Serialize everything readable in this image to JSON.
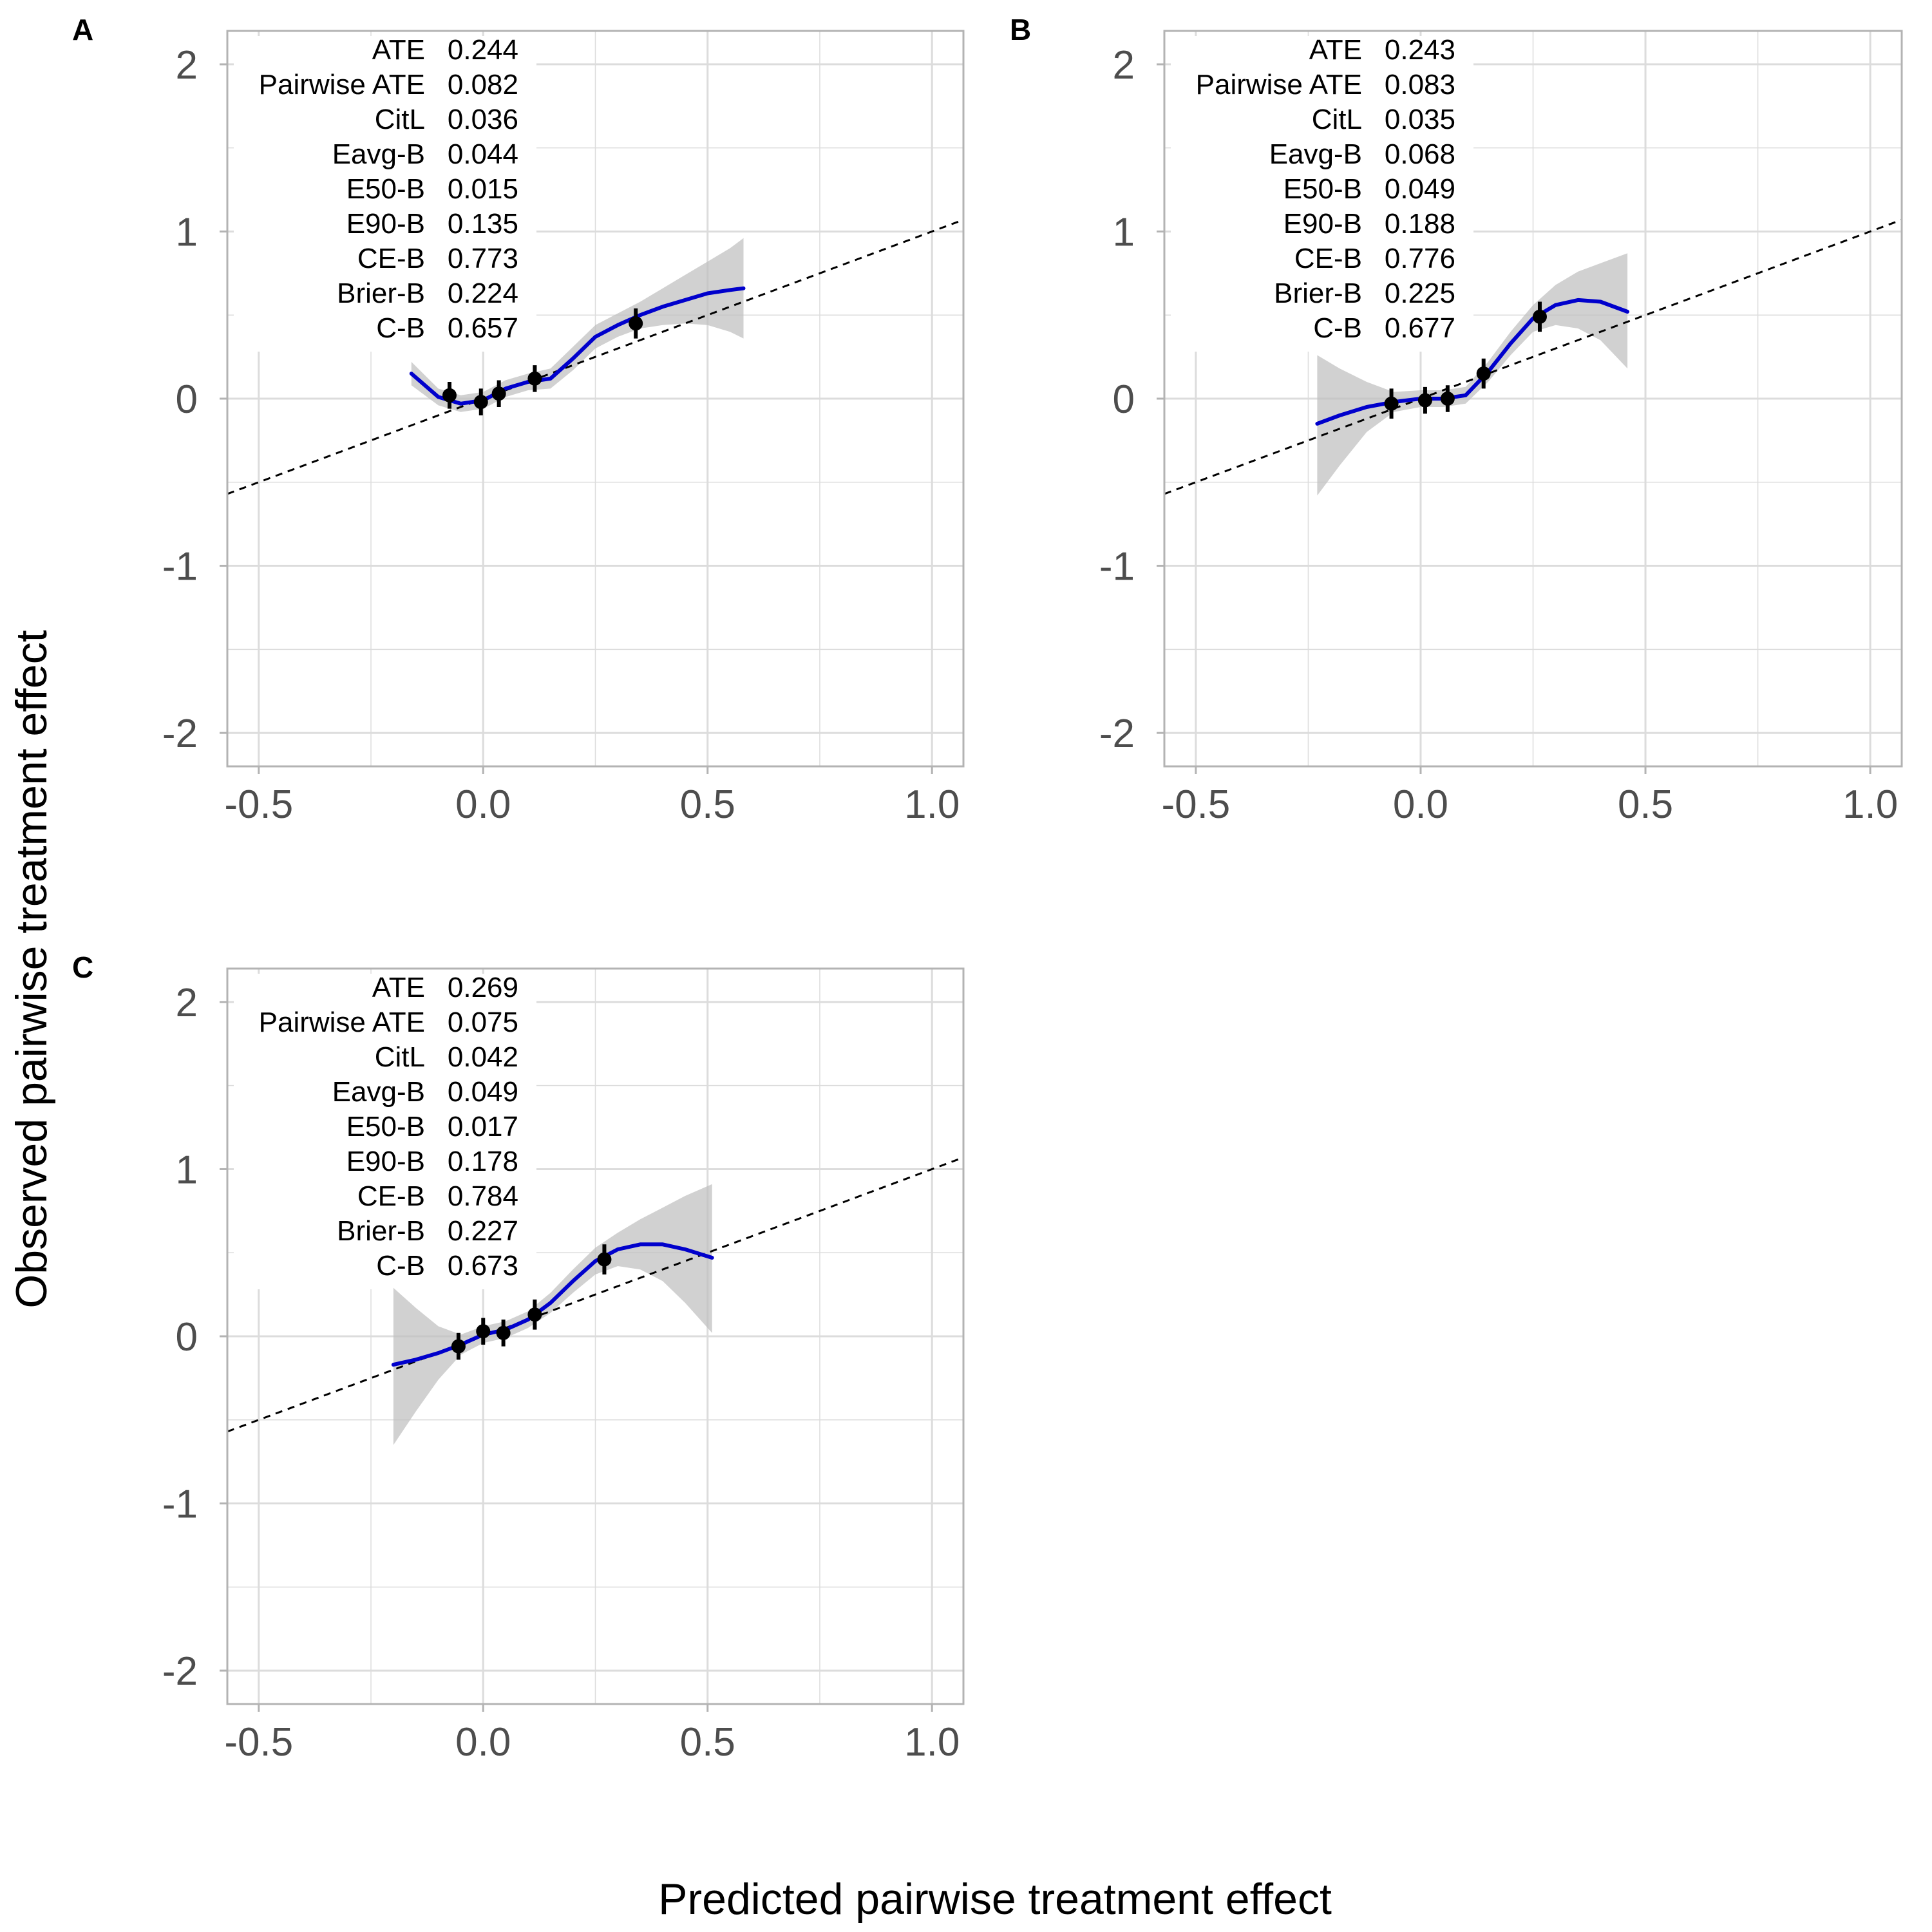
{
  "figure": {
    "xlabel": "Predicted pairwise treatment effect",
    "ylabel": "Observed pairwise treatment effect"
  },
  "colors": {
    "smooth": "#0000CC",
    "band": "#BEBEBE",
    "points": "#000000",
    "frame": "#B3B3B3",
    "grid": "#DCDCDC",
    "tick_text": "#4D4D4D"
  },
  "chart_data": [
    {
      "panel": "A",
      "type": "scatter",
      "xlim": [
        -0.57,
        1.07
      ],
      "ylim": [
        -2.2,
        2.2
      ],
      "x_ticks": [
        "-0.5",
        "0.0",
        "0.5",
        "1.0"
      ],
      "y_ticks": [
        "-2",
        "-1",
        "0",
        "1",
        "2"
      ],
      "reference_line": {
        "intercept": 0,
        "slope": 1,
        "style": "dashed"
      },
      "stats": [
        {
          "label": "ATE",
          "value": "0.244"
        },
        {
          "label": "Pairwise ATE",
          "value": "0.082"
        },
        {
          "label": "CitL",
          "value": "0.036"
        },
        {
          "label": "Eavg-B",
          "value": "0.044"
        },
        {
          "label": "E50-B",
          "value": "0.015"
        },
        {
          "label": "E90-B",
          "value": "0.135"
        },
        {
          "label": "CE-B",
          "value": "0.773"
        },
        {
          "label": "Brier-B",
          "value": "0.224"
        },
        {
          "label": "C-B",
          "value": "0.657"
        }
      ],
      "points": [
        {
          "x": -0.075,
          "y": 0.02,
          "lo": -0.06,
          "hi": 0.1
        },
        {
          "x": -0.005,
          "y": -0.02,
          "lo": -0.1,
          "hi": 0.06
        },
        {
          "x": 0.035,
          "y": 0.03,
          "lo": -0.05,
          "hi": 0.11
        },
        {
          "x": 0.115,
          "y": 0.12,
          "lo": 0.04,
          "hi": 0.2
        },
        {
          "x": 0.34,
          "y": 0.45,
          "lo": 0.36,
          "hi": 0.54
        }
      ],
      "smooth": [
        {
          "x": -0.16,
          "y": 0.15,
          "lo": 0.08,
          "hi": 0.22
        },
        {
          "x": -0.1,
          "y": 0.01,
          "lo": -0.04,
          "hi": 0.06
        },
        {
          "x": -0.05,
          "y": -0.03,
          "lo": -0.08,
          "hi": 0.02
        },
        {
          "x": 0.0,
          "y": -0.01,
          "lo": -0.06,
          "hi": 0.04
        },
        {
          "x": 0.05,
          "y": 0.06,
          "lo": 0.01,
          "hi": 0.11
        },
        {
          "x": 0.1,
          "y": 0.1,
          "lo": 0.05,
          "hi": 0.15
        },
        {
          "x": 0.15,
          "y": 0.12,
          "lo": 0.06,
          "hi": 0.18
        },
        {
          "x": 0.2,
          "y": 0.24,
          "lo": 0.17,
          "hi": 0.31
        },
        {
          "x": 0.25,
          "y": 0.37,
          "lo": 0.3,
          "hi": 0.44
        },
        {
          "x": 0.3,
          "y": 0.44,
          "lo": 0.37,
          "hi": 0.51
        },
        {
          "x": 0.35,
          "y": 0.5,
          "lo": 0.42,
          "hi": 0.58
        },
        {
          "x": 0.4,
          "y": 0.55,
          "lo": 0.44,
          "hi": 0.66
        },
        {
          "x": 0.45,
          "y": 0.59,
          "lo": 0.45,
          "hi": 0.74
        },
        {
          "x": 0.5,
          "y": 0.63,
          "lo": 0.44,
          "hi": 0.82
        },
        {
          "x": 0.55,
          "y": 0.65,
          "lo": 0.4,
          "hi": 0.9
        },
        {
          "x": 0.58,
          "y": 0.66,
          "lo": 0.36,
          "hi": 0.96
        }
      ]
    },
    {
      "panel": "B",
      "type": "scatter",
      "xlim": [
        -0.57,
        1.07
      ],
      "ylim": [
        -2.2,
        2.2
      ],
      "x_ticks": [
        "-0.5",
        "0.0",
        "0.5",
        "1.0"
      ],
      "y_ticks": [
        "-2",
        "-1",
        "0",
        "1",
        "2"
      ],
      "reference_line": {
        "intercept": 0,
        "slope": 1,
        "style": "dashed"
      },
      "stats": [
        {
          "label": "ATE",
          "value": "0.243"
        },
        {
          "label": "Pairwise ATE",
          "value": "0.083"
        },
        {
          "label": "CitL",
          "value": "0.035"
        },
        {
          "label": "Eavg-B",
          "value": "0.068"
        },
        {
          "label": "E50-B",
          "value": "0.049"
        },
        {
          "label": "E90-B",
          "value": "0.188"
        },
        {
          "label": "CE-B",
          "value": "0.776"
        },
        {
          "label": "Brier-B",
          "value": "0.225"
        },
        {
          "label": "C-B",
          "value": "0.677"
        }
      ],
      "points": [
        {
          "x": -0.065,
          "y": -0.03,
          "lo": -0.12,
          "hi": 0.06
        },
        {
          "x": 0.01,
          "y": -0.01,
          "lo": -0.09,
          "hi": 0.07
        },
        {
          "x": 0.06,
          "y": 0.0,
          "lo": -0.08,
          "hi": 0.08
        },
        {
          "x": 0.14,
          "y": 0.15,
          "lo": 0.06,
          "hi": 0.24
        },
        {
          "x": 0.265,
          "y": 0.49,
          "lo": 0.4,
          "hi": 0.58
        }
      ],
      "smooth": [
        {
          "x": -0.23,
          "y": -0.15,
          "lo": -0.58,
          "hi": 0.26
        },
        {
          "x": -0.18,
          "y": -0.1,
          "lo": -0.4,
          "hi": 0.18
        },
        {
          "x": -0.12,
          "y": -0.05,
          "lo": -0.2,
          "hi": 0.1
        },
        {
          "x": -0.06,
          "y": -0.02,
          "lo": -0.08,
          "hi": 0.04
        },
        {
          "x": 0.0,
          "y": 0.0,
          "lo": -0.05,
          "hi": 0.05
        },
        {
          "x": 0.05,
          "y": 0.0,
          "lo": -0.05,
          "hi": 0.05
        },
        {
          "x": 0.1,
          "y": 0.02,
          "lo": -0.03,
          "hi": 0.07
        },
        {
          "x": 0.15,
          "y": 0.16,
          "lo": 0.1,
          "hi": 0.22
        },
        {
          "x": 0.2,
          "y": 0.33,
          "lo": 0.26,
          "hi": 0.4
        },
        {
          "x": 0.25,
          "y": 0.48,
          "lo": 0.4,
          "hi": 0.56
        },
        {
          "x": 0.3,
          "y": 0.56,
          "lo": 0.44,
          "hi": 0.68
        },
        {
          "x": 0.35,
          "y": 0.59,
          "lo": 0.42,
          "hi": 0.76
        },
        {
          "x": 0.4,
          "y": 0.58,
          "lo": 0.35,
          "hi": 0.81
        },
        {
          "x": 0.46,
          "y": 0.52,
          "lo": 0.18,
          "hi": 0.87
        }
      ]
    },
    {
      "panel": "C",
      "type": "scatter",
      "xlim": [
        -0.57,
        1.07
      ],
      "ylim": [
        -2.2,
        2.2
      ],
      "x_ticks": [
        "-0.5",
        "0.0",
        "0.5",
        "1.0"
      ],
      "y_ticks": [
        "-2",
        "-1",
        "0",
        "1",
        "2"
      ],
      "reference_line": {
        "intercept": 0,
        "slope": 1,
        "style": "dashed"
      },
      "stats": [
        {
          "label": "ATE",
          "value": "0.269"
        },
        {
          "label": "Pairwise ATE",
          "value": "0.075"
        },
        {
          "label": "CitL",
          "value": "0.042"
        },
        {
          "label": "Eavg-B",
          "value": "0.049"
        },
        {
          "label": "E50-B",
          "value": "0.017"
        },
        {
          "label": "E90-B",
          "value": "0.178"
        },
        {
          "label": "CE-B",
          "value": "0.784"
        },
        {
          "label": "Brier-B",
          "value": "0.227"
        },
        {
          "label": "C-B",
          "value": "0.673"
        }
      ],
      "points": [
        {
          "x": -0.055,
          "y": -0.06,
          "lo": -0.14,
          "hi": 0.02
        },
        {
          "x": 0.0,
          "y": 0.03,
          "lo": -0.05,
          "hi": 0.11
        },
        {
          "x": 0.045,
          "y": 0.02,
          "lo": -0.06,
          "hi": 0.1
        },
        {
          "x": 0.115,
          "y": 0.13,
          "lo": 0.04,
          "hi": 0.22
        },
        {
          "x": 0.27,
          "y": 0.46,
          "lo": 0.37,
          "hi": 0.55
        }
      ],
      "smooth": [
        {
          "x": -0.2,
          "y": -0.17,
          "lo": -0.65,
          "hi": 0.29
        },
        {
          "x": -0.15,
          "y": -0.14,
          "lo": -0.45,
          "hi": 0.17
        },
        {
          "x": -0.1,
          "y": -0.1,
          "lo": -0.26,
          "hi": 0.06
        },
        {
          "x": -0.05,
          "y": -0.05,
          "lo": -0.11,
          "hi": 0.01
        },
        {
          "x": 0.0,
          "y": 0.01,
          "lo": -0.04,
          "hi": 0.06
        },
        {
          "x": 0.05,
          "y": 0.04,
          "lo": -0.01,
          "hi": 0.09
        },
        {
          "x": 0.1,
          "y": 0.1,
          "lo": 0.05,
          "hi": 0.15
        },
        {
          "x": 0.15,
          "y": 0.2,
          "lo": 0.14,
          "hi": 0.26
        },
        {
          "x": 0.2,
          "y": 0.33,
          "lo": 0.26,
          "hi": 0.4
        },
        {
          "x": 0.25,
          "y": 0.45,
          "lo": 0.37,
          "hi": 0.53
        },
        {
          "x": 0.3,
          "y": 0.52,
          "lo": 0.42,
          "hi": 0.62
        },
        {
          "x": 0.35,
          "y": 0.55,
          "lo": 0.4,
          "hi": 0.7
        },
        {
          "x": 0.4,
          "y": 0.55,
          "lo": 0.33,
          "hi": 0.77
        },
        {
          "x": 0.45,
          "y": 0.52,
          "lo": 0.2,
          "hi": 0.84
        },
        {
          "x": 0.51,
          "y": 0.47,
          "lo": 0.02,
          "hi": 0.91
        }
      ]
    }
  ]
}
